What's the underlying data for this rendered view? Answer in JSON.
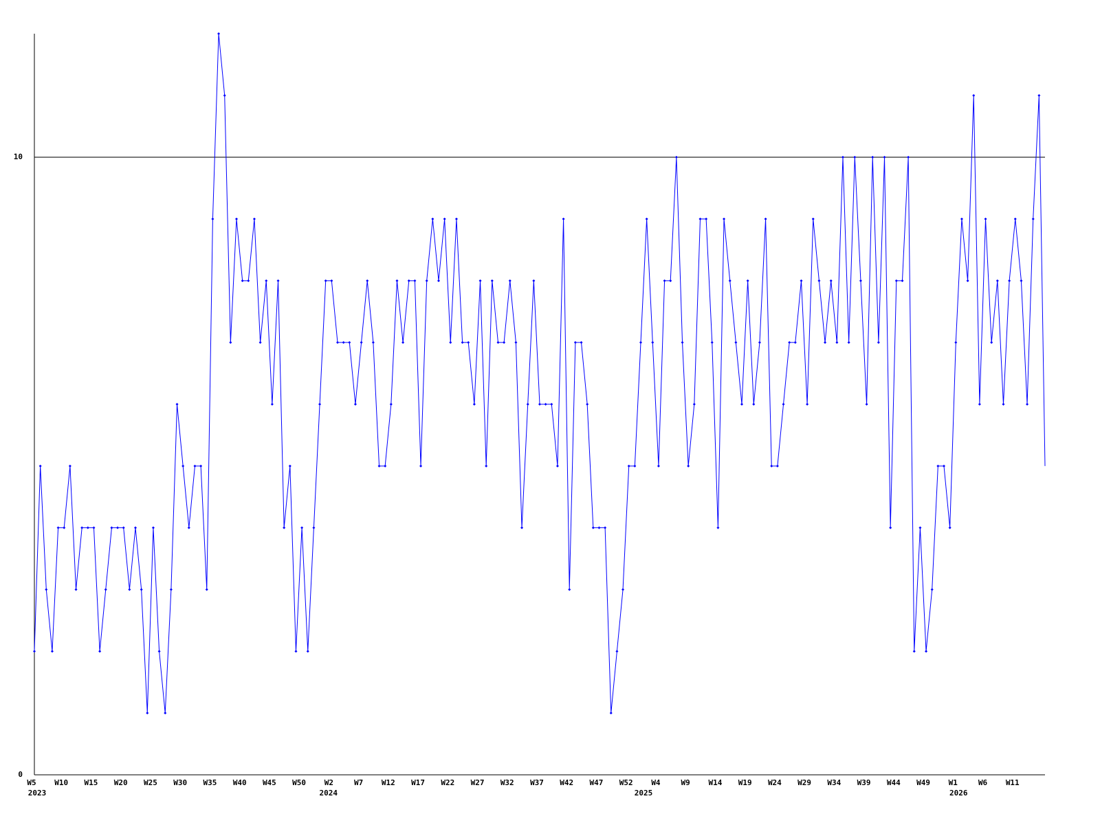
{
  "chart_data": {
    "type": "line",
    "categories": [
      "W5",
      null,
      null,
      null,
      null,
      "W10",
      null,
      null,
      null,
      null,
      "W15",
      null,
      null,
      null,
      null,
      "W20",
      null,
      null,
      null,
      null,
      "W25",
      null,
      null,
      null,
      null,
      "W30",
      null,
      null,
      null,
      null,
      "W35",
      null,
      null,
      null,
      null,
      "W40",
      null,
      null,
      null,
      null,
      "W45",
      null,
      null,
      null,
      null,
      "W50",
      null,
      null,
      null,
      null,
      "W2",
      null,
      null,
      null,
      null,
      "W7",
      null,
      null,
      null,
      null,
      "W12",
      null,
      null,
      null,
      null,
      "W17",
      null,
      null,
      null,
      null,
      "W22",
      null,
      null,
      null,
      null,
      "W27",
      null,
      null,
      null,
      null,
      "W32",
      null,
      null,
      null,
      null,
      "W37",
      null,
      null,
      null,
      null,
      "W42",
      null,
      null,
      null,
      null,
      "W47",
      null,
      null,
      null,
      null,
      "W52",
      null,
      null,
      null,
      null,
      "W4",
      null,
      null,
      null,
      null,
      "W9",
      null,
      null,
      null,
      null,
      "W14",
      null,
      null,
      null,
      null,
      "W19",
      null,
      null,
      null,
      null,
      "W24",
      null,
      null,
      null,
      null,
      "W29",
      null,
      null,
      null,
      null,
      "W34",
      null,
      null,
      null,
      null,
      "W39",
      null,
      null,
      null,
      null,
      "W44",
      null,
      null,
      null,
      null,
      "W49",
      null,
      null,
      null,
      null,
      "W1",
      null,
      null,
      null,
      null,
      "W6",
      null,
      null,
      null,
      null,
      "W11",
      null,
      null,
      null,
      null,
      null
    ],
    "category_years": [
      "2023",
      null,
      null,
      null,
      null,
      null,
      null,
      null,
      null,
      null,
      null,
      null,
      null,
      null,
      null,
      null,
      null,
      null,
      null,
      null,
      null,
      null,
      null,
      null,
      null,
      null,
      null,
      null,
      null,
      null,
      null,
      null,
      null,
      null,
      null,
      null,
      null,
      null,
      null,
      null,
      null,
      null,
      null,
      null,
      null,
      null,
      null,
      null,
      null,
      "2024",
      null,
      null,
      null,
      null,
      null,
      null,
      null,
      null,
      null,
      null,
      null,
      null,
      null,
      null,
      null,
      null,
      null,
      null,
      null,
      null,
      null,
      null,
      null,
      null,
      null,
      null,
      null,
      null,
      null,
      null,
      null,
      null,
      null,
      null,
      null,
      null,
      null,
      null,
      null,
      null,
      null,
      null,
      null,
      null,
      null,
      null,
      null,
      null,
      null,
      null,
      null,
      null,
      "2025",
      null,
      null,
      null,
      null,
      null,
      null,
      null,
      null,
      null,
      null,
      null,
      null,
      null,
      null,
      null,
      null,
      null,
      null,
      null,
      null,
      null,
      null,
      null,
      null,
      null,
      null,
      null,
      null,
      null,
      null,
      null,
      null,
      null,
      null,
      null,
      null,
      null,
      null,
      null,
      null,
      null,
      null,
      null,
      null,
      null,
      null,
      null,
      null,
      null,
      null,
      null,
      null,
      "2026",
      null,
      null,
      null,
      null,
      null,
      null,
      null,
      null,
      null,
      null,
      null,
      null,
      null,
      null,
      null
    ],
    "values": [
      2,
      5,
      3,
      2,
      4,
      4,
      5,
      3,
      4,
      4,
      4,
      2,
      3,
      4,
      4,
      4,
      3,
      4,
      3,
      1,
      4,
      2,
      1,
      3,
      6,
      5,
      4,
      5,
      5,
      3,
      9,
      12,
      11,
      7,
      9,
      8,
      8,
      9,
      7,
      8,
      6,
      8,
      4,
      5,
      2,
      4,
      2,
      4,
      6,
      8,
      8,
      7,
      7,
      7,
      6,
      7,
      8,
      7,
      5,
      5,
      6,
      8,
      7,
      8,
      8,
      5,
      8,
      9,
      8,
      9,
      7,
      9,
      7,
      7,
      6,
      8,
      5,
      8,
      7,
      7,
      8,
      7,
      4,
      6,
      8,
      6,
      6,
      6,
      5,
      9,
      3,
      7,
      7,
      6,
      4,
      4,
      4,
      1,
      2,
      3,
      5,
      5,
      7,
      9,
      7,
      5,
      8,
      8,
      10,
      7,
      5,
      6,
      9,
      9,
      7,
      4,
      9,
      8,
      7,
      6,
      8,
      6,
      7,
      9,
      5,
      5,
      6,
      7,
      7,
      8,
      6,
      9,
      8,
      7,
      8,
      7,
      10,
      7,
      10,
      8,
      6,
      10,
      7,
      10,
      4,
      8,
      8,
      10,
      2,
      4,
      2,
      3,
      5,
      5,
      4,
      7,
      9,
      8,
      11,
      6,
      9,
      7,
      8,
      6,
      8,
      9,
      8,
      6,
      9,
      11,
      5
    ],
    "color": "#0000ff",
    "ylim": [
      0,
      12
    ],
    "yticks": [
      0,
      10
    ],
    "grid": true
  }
}
